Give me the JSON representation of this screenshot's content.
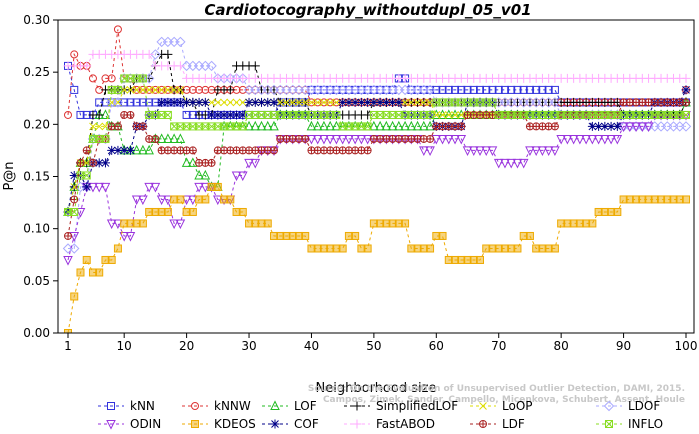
{
  "chart_data": {
    "type": "line",
    "title": "Cardiotocography_withoutdupl_05_v01",
    "xlabel": "Neighborhood size",
    "ylabel": "P@n",
    "xlim": [
      1,
      100
    ],
    "ylim": [
      0,
      0.3
    ],
    "xticks": [
      "1",
      "10",
      "20",
      "30",
      "40",
      "50",
      "60",
      "70",
      "80",
      "90",
      "100"
    ],
    "yticks": [
      "0.00",
      "0.05",
      "0.10",
      "0.15",
      "0.20",
      "0.25",
      "0.30"
    ],
    "grid": false,
    "legend_position": "bottom",
    "credit": [
      "Source: On the Evaluation of Unsupervised Outlier Detection, DAMI, 2015.",
      "Campos, Zimek, Sander, Campello, Micenkova, Schubert, Assent, Houle"
    ],
    "series": [
      {
        "name": "kNN",
        "color": "#3333dd",
        "marker": "square",
        "points": [
          [
            1,
            0.256
          ],
          [
            2,
            0.233
          ],
          [
            3,
            0.209
          ],
          [
            5,
            0.209
          ],
          [
            6,
            0.221
          ],
          [
            10,
            0.221
          ],
          [
            12,
            0.221
          ],
          [
            15,
            0.221
          ],
          [
            18,
            0.221
          ],
          [
            20,
            0.209
          ],
          [
            25,
            0.209
          ],
          [
            30,
            0.209
          ],
          [
            35,
            0.221
          ],
          [
            40,
            0.233
          ],
          [
            53,
            0.233
          ],
          [
            54,
            0.244
          ],
          [
            56,
            0.233
          ],
          [
            70,
            0.233
          ],
          [
            80,
            0.221
          ],
          [
            90,
            0.221
          ],
          [
            91,
            0.221
          ],
          [
            100,
            0.221
          ]
        ]
      },
      {
        "name": "kNNW",
        "color": "#dd3333",
        "marker": "circle",
        "points": [
          [
            1,
            0.209
          ],
          [
            2,
            0.267
          ],
          [
            3,
            0.256
          ],
          [
            4,
            0.256
          ],
          [
            5,
            0.244
          ],
          [
            6,
            0.233
          ],
          [
            7,
            0.244
          ],
          [
            8,
            0.244
          ],
          [
            9,
            0.291
          ],
          [
            10,
            0.244
          ],
          [
            12,
            0.233
          ],
          [
            15,
            0.233
          ],
          [
            18,
            0.233
          ],
          [
            20,
            0.233
          ],
          [
            30,
            0.233
          ],
          [
            40,
            0.221
          ],
          [
            50,
            0.221
          ],
          [
            60,
            0.221
          ],
          [
            70,
            0.221
          ],
          [
            80,
            0.221
          ],
          [
            90,
            0.221
          ],
          [
            100,
            0.233
          ]
        ]
      },
      {
        "name": "LOF",
        "color": "#22bb22",
        "marker": "triangle",
        "points": [
          [
            1,
            0.116
          ],
          [
            2,
            0.14
          ],
          [
            3,
            0.163
          ],
          [
            5,
            0.186
          ],
          [
            6,
            0.209
          ],
          [
            8,
            0.198
          ],
          [
            10,
            0.175
          ],
          [
            12,
            0.175
          ],
          [
            15,
            0.186
          ],
          [
            18,
            0.186
          ],
          [
            20,
            0.163
          ],
          [
            22,
            0.151
          ],
          [
            24,
            0.14
          ],
          [
            26,
            0.198
          ],
          [
            30,
            0.198
          ],
          [
            35,
            0.209
          ],
          [
            40,
            0.198
          ],
          [
            45,
            0.198
          ],
          [
            50,
            0.198
          ],
          [
            60,
            0.209
          ],
          [
            70,
            0.209
          ],
          [
            80,
            0.209
          ],
          [
            90,
            0.209
          ],
          [
            100,
            0.221
          ]
        ]
      },
      {
        "name": "SimplifiedLOF",
        "color": "#000000",
        "marker": "plus",
        "points": [
          [
            1,
            0.116
          ],
          [
            2,
            0.14
          ],
          [
            3,
            0.163
          ],
          [
            5,
            0.209
          ],
          [
            7,
            0.233
          ],
          [
            10,
            0.233
          ],
          [
            12,
            0.244
          ],
          [
            15,
            0.256
          ],
          [
            16,
            0.267
          ],
          [
            18,
            0.233
          ],
          [
            20,
            0.221
          ],
          [
            22,
            0.209
          ],
          [
            25,
            0.233
          ],
          [
            28,
            0.256
          ],
          [
            30,
            0.256
          ],
          [
            32,
            0.233
          ],
          [
            35,
            0.221
          ],
          [
            40,
            0.209
          ],
          [
            45,
            0.209
          ],
          [
            50,
            0.221
          ],
          [
            60,
            0.221
          ],
          [
            70,
            0.221
          ],
          [
            80,
            0.221
          ],
          [
            90,
            0.209
          ],
          [
            100,
            0.221
          ]
        ]
      },
      {
        "name": "LoOP",
        "color": "#dddd00",
        "marker": "x",
        "points": [
          [
            1,
            0.116
          ],
          [
            2,
            0.14
          ],
          [
            3,
            0.163
          ],
          [
            5,
            0.198
          ],
          [
            8,
            0.221
          ],
          [
            10,
            0.233
          ],
          [
            15,
            0.233
          ],
          [
            20,
            0.221
          ],
          [
            25,
            0.221
          ],
          [
            30,
            0.221
          ],
          [
            40,
            0.221
          ],
          [
            50,
            0.221
          ],
          [
            60,
            0.209
          ],
          [
            70,
            0.209
          ],
          [
            80,
            0.209
          ],
          [
            90,
            0.209
          ],
          [
            100,
            0.209
          ]
        ]
      },
      {
        "name": "LDOF",
        "color": "#aaaaff",
        "marker": "diamond",
        "points": [
          [
            1,
            0.081
          ],
          [
            3,
            0.14
          ],
          [
            5,
            0.186
          ],
          [
            8,
            0.221
          ],
          [
            10,
            0.244
          ],
          [
            15,
            0.267
          ],
          [
            16,
            0.279
          ],
          [
            20,
            0.256
          ],
          [
            25,
            0.244
          ],
          [
            30,
            0.233
          ],
          [
            40,
            0.233
          ],
          [
            50,
            0.233
          ],
          [
            60,
            0.221
          ],
          [
            70,
            0.221
          ],
          [
            80,
            0.209
          ],
          [
            90,
            0.198
          ],
          [
            100,
            0.198
          ]
        ]
      },
      {
        "name": "ODIN",
        "color": "#9933dd",
        "marker": "triangle-down",
        "points": [
          [
            1,
            0.07
          ],
          [
            2,
            0.093
          ],
          [
            3,
            0.116
          ],
          [
            4,
            0.14
          ],
          [
            5,
            0.14
          ],
          [
            6,
            0.14
          ],
          [
            8,
            0.105
          ],
          [
            10,
            0.093
          ],
          [
            12,
            0.128
          ],
          [
            14,
            0.14
          ],
          [
            16,
            0.128
          ],
          [
            18,
            0.105
          ],
          [
            20,
            0.128
          ],
          [
            22,
            0.14
          ],
          [
            25,
            0.128
          ],
          [
            28,
            0.151
          ],
          [
            30,
            0.163
          ],
          [
            32,
            0.175
          ],
          [
            35,
            0.186
          ],
          [
            40,
            0.186
          ],
          [
            45,
            0.186
          ],
          [
            50,
            0.186
          ],
          [
            55,
            0.186
          ],
          [
            58,
            0.175
          ],
          [
            60,
            0.186
          ],
          [
            65,
            0.175
          ],
          [
            70,
            0.163
          ],
          [
            75,
            0.175
          ],
          [
            80,
            0.186
          ],
          [
            85,
            0.186
          ],
          [
            90,
            0.198
          ],
          [
            95,
            0.209
          ],
          [
            100,
            0.209
          ]
        ]
      },
      {
        "name": "KDEOS",
        "color": "#eeaa00",
        "marker": "square-filled",
        "points": [
          [
            1,
            0.0
          ],
          [
            2,
            0.035
          ],
          [
            3,
            0.058
          ],
          [
            4,
            0.07
          ],
          [
            5,
            0.058
          ],
          [
            7,
            0.07
          ],
          [
            8,
            0.07
          ],
          [
            9,
            0.081
          ],
          [
            10,
            0.105
          ],
          [
            12,
            0.105
          ],
          [
            14,
            0.116
          ],
          [
            16,
            0.116
          ],
          [
            18,
            0.128
          ],
          [
            20,
            0.116
          ],
          [
            22,
            0.128
          ],
          [
            24,
            0.14
          ],
          [
            26,
            0.128
          ],
          [
            28,
            0.116
          ],
          [
            30,
            0.105
          ],
          [
            32,
            0.105
          ],
          [
            34,
            0.093
          ],
          [
            36,
            0.093
          ],
          [
            38,
            0.093
          ],
          [
            40,
            0.081
          ],
          [
            44,
            0.081
          ],
          [
            46,
            0.093
          ],
          [
            48,
            0.081
          ],
          [
            50,
            0.105
          ],
          [
            55,
            0.105
          ],
          [
            56,
            0.081
          ],
          [
            58,
            0.081
          ],
          [
            60,
            0.093
          ],
          [
            62,
            0.07
          ],
          [
            66,
            0.07
          ],
          [
            68,
            0.081
          ],
          [
            72,
            0.081
          ],
          [
            74,
            0.093
          ],
          [
            76,
            0.081
          ],
          [
            78,
            0.081
          ],
          [
            80,
            0.105
          ],
          [
            85,
            0.105
          ],
          [
            86,
            0.116
          ],
          [
            90,
            0.128
          ],
          [
            100,
            0.128
          ]
        ]
      },
      {
        "name": "COF",
        "color": "#000088",
        "marker": "asterisk",
        "points": [
          [
            1,
            0.116
          ],
          [
            2,
            0.151
          ],
          [
            3,
            0.151
          ],
          [
            4,
            0.14
          ],
          [
            5,
            0.163
          ],
          [
            6,
            0.163
          ],
          [
            8,
            0.175
          ],
          [
            10,
            0.175
          ],
          [
            12,
            0.198
          ],
          [
            14,
            0.209
          ],
          [
            16,
            0.221
          ],
          [
            18,
            0.221
          ],
          [
            20,
            0.221
          ],
          [
            22,
            0.221
          ],
          [
            24,
            0.209
          ],
          [
            26,
            0.209
          ],
          [
            28,
            0.209
          ],
          [
            30,
            0.221
          ],
          [
            32,
            0.221
          ],
          [
            35,
            0.209
          ],
          [
            40,
            0.209
          ],
          [
            45,
            0.221
          ],
          [
            50,
            0.221
          ],
          [
            55,
            0.209
          ],
          [
            60,
            0.198
          ],
          [
            65,
            0.221
          ],
          [
            70,
            0.209
          ],
          [
            80,
            0.209
          ],
          [
            85,
            0.198
          ],
          [
            90,
            0.209
          ],
          [
            95,
            0.221
          ],
          [
            100,
            0.233
          ]
        ]
      },
      {
        "name": "FastABOD",
        "color": "#ffaaff",
        "marker": "plus",
        "points": [
          [
            1,
            0.256
          ],
          [
            5,
            0.267
          ],
          [
            10,
            0.267
          ],
          [
            15,
            0.256
          ],
          [
            20,
            0.244
          ],
          [
            30,
            0.244
          ],
          [
            40,
            0.244
          ],
          [
            50,
            0.244
          ],
          [
            60,
            0.244
          ],
          [
            70,
            0.244
          ],
          [
            80,
            0.244
          ],
          [
            90,
            0.244
          ],
          [
            100,
            0.244
          ]
        ]
      },
      {
        "name": "LDF",
        "color": "#aa2222",
        "marker": "circle-plus",
        "points": [
          [
            1,
            0.093
          ],
          [
            2,
            0.128
          ],
          [
            3,
            0.163
          ],
          [
            4,
            0.175
          ],
          [
            5,
            0.163
          ],
          [
            6,
            0.186
          ],
          [
            8,
            0.198
          ],
          [
            10,
            0.209
          ],
          [
            12,
            0.198
          ],
          [
            14,
            0.186
          ],
          [
            16,
            0.175
          ],
          [
            20,
            0.175
          ],
          [
            22,
            0.163
          ],
          [
            25,
            0.175
          ],
          [
            30,
            0.175
          ],
          [
            35,
            0.186
          ],
          [
            40,
            0.175
          ],
          [
            45,
            0.175
          ],
          [
            50,
            0.186
          ],
          [
            55,
            0.186
          ],
          [
            60,
            0.198
          ],
          [
            65,
            0.209
          ],
          [
            70,
            0.209
          ],
          [
            75,
            0.198
          ],
          [
            80,
            0.209
          ],
          [
            85,
            0.209
          ],
          [
            90,
            0.221
          ],
          [
            95,
            0.221
          ],
          [
            100,
            0.221
          ]
        ]
      },
      {
        "name": "INFLO",
        "color": "#88dd22",
        "marker": "square-x",
        "points": [
          [
            1,
            0.116
          ],
          [
            3,
            0.151
          ],
          [
            5,
            0.186
          ],
          [
            8,
            0.233
          ],
          [
            10,
            0.244
          ],
          [
            12,
            0.244
          ],
          [
            14,
            0.209
          ],
          [
            16,
            0.209
          ],
          [
            18,
            0.198
          ],
          [
            20,
            0.198
          ],
          [
            25,
            0.198
          ],
          [
            30,
            0.209
          ],
          [
            40,
            0.209
          ],
          [
            45,
            0.198
          ],
          [
            50,
            0.209
          ],
          [
            60,
            0.221
          ],
          [
            70,
            0.209
          ],
          [
            80,
            0.209
          ],
          [
            90,
            0.209
          ],
          [
            100,
            0.209
          ]
        ]
      }
    ]
  }
}
